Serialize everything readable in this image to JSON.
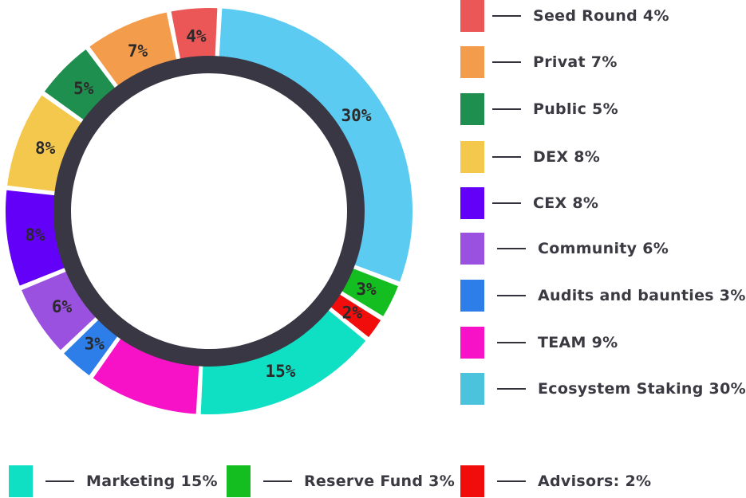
{
  "chart_data": {
    "type": "pie",
    "variant": "donut",
    "ring_color": "#3a3744",
    "slices": [
      {
        "label": "Ecosystem Staking",
        "value": 30,
        "label_text": "30%",
        "color": "#5ccbf1"
      },
      {
        "label": "Reserve Fund",
        "value": 3,
        "label_text": "3%",
        "color": "#15be20"
      },
      {
        "label": "Advisors",
        "value": 2,
        "label_text": "2%",
        "color": "#f20d0d"
      },
      {
        "label": "Marketing",
        "value": 15,
        "label_text": "15%",
        "color": "#0fe0c3"
      },
      {
        "label": "TEAM",
        "value": 9,
        "label_text": "",
        "color": "#f712c8"
      },
      {
        "label": "Audits and baunties",
        "value": 3,
        "label_text": "3%",
        "color": "#2d7ee8"
      },
      {
        "label": "Community",
        "value": 6,
        "label_text": "6%",
        "color": "#9b51e0"
      },
      {
        "label": "CEX",
        "value": 8,
        "label_text": "8%",
        "color": "#6300f7"
      },
      {
        "label": "DEX",
        "value": 8,
        "label_text": "8%",
        "color": "#f4c84d"
      },
      {
        "label": "Public",
        "value": 5,
        "label_text": "5%",
        "color": "#1f8f4f"
      },
      {
        "label": "Privat",
        "value": 7,
        "label_text": "7%",
        "color": "#f39c4c"
      },
      {
        "label": "Seed Round",
        "value": 4,
        "label_text": "4%",
        "color": "#eb5757"
      }
    ]
  },
  "legend": {
    "right": [
      {
        "text": "Seed Round 4%",
        "color": "#eb5757"
      },
      {
        "text": "Privat 7%",
        "color": "#f39c4c"
      },
      {
        "text": "Public 5%",
        "color": "#1f8f4f"
      },
      {
        "text": "DEX 8%",
        "color": "#f4c84d"
      },
      {
        "text": "CEX 8%",
        "color": "#6300f7"
      },
      {
        "text": "Community 6%",
        "color": "#9b51e0"
      },
      {
        "text": "Audits and baunties 3%",
        "color": "#2d7ee8"
      },
      {
        "text": "TEAM 9%",
        "color": "#f712c8"
      },
      {
        "text": "Ecosystem Staking 30%",
        "color": "#4bc3dc"
      }
    ],
    "bottom": [
      {
        "text": "Marketing 15%",
        "color": "#0fe0c3"
      },
      {
        "text": "Reserve Fund 3%",
        "color": "#15be20"
      },
      {
        "text": "Advisors: 2%",
        "color": "#f20d0d"
      }
    ]
  }
}
